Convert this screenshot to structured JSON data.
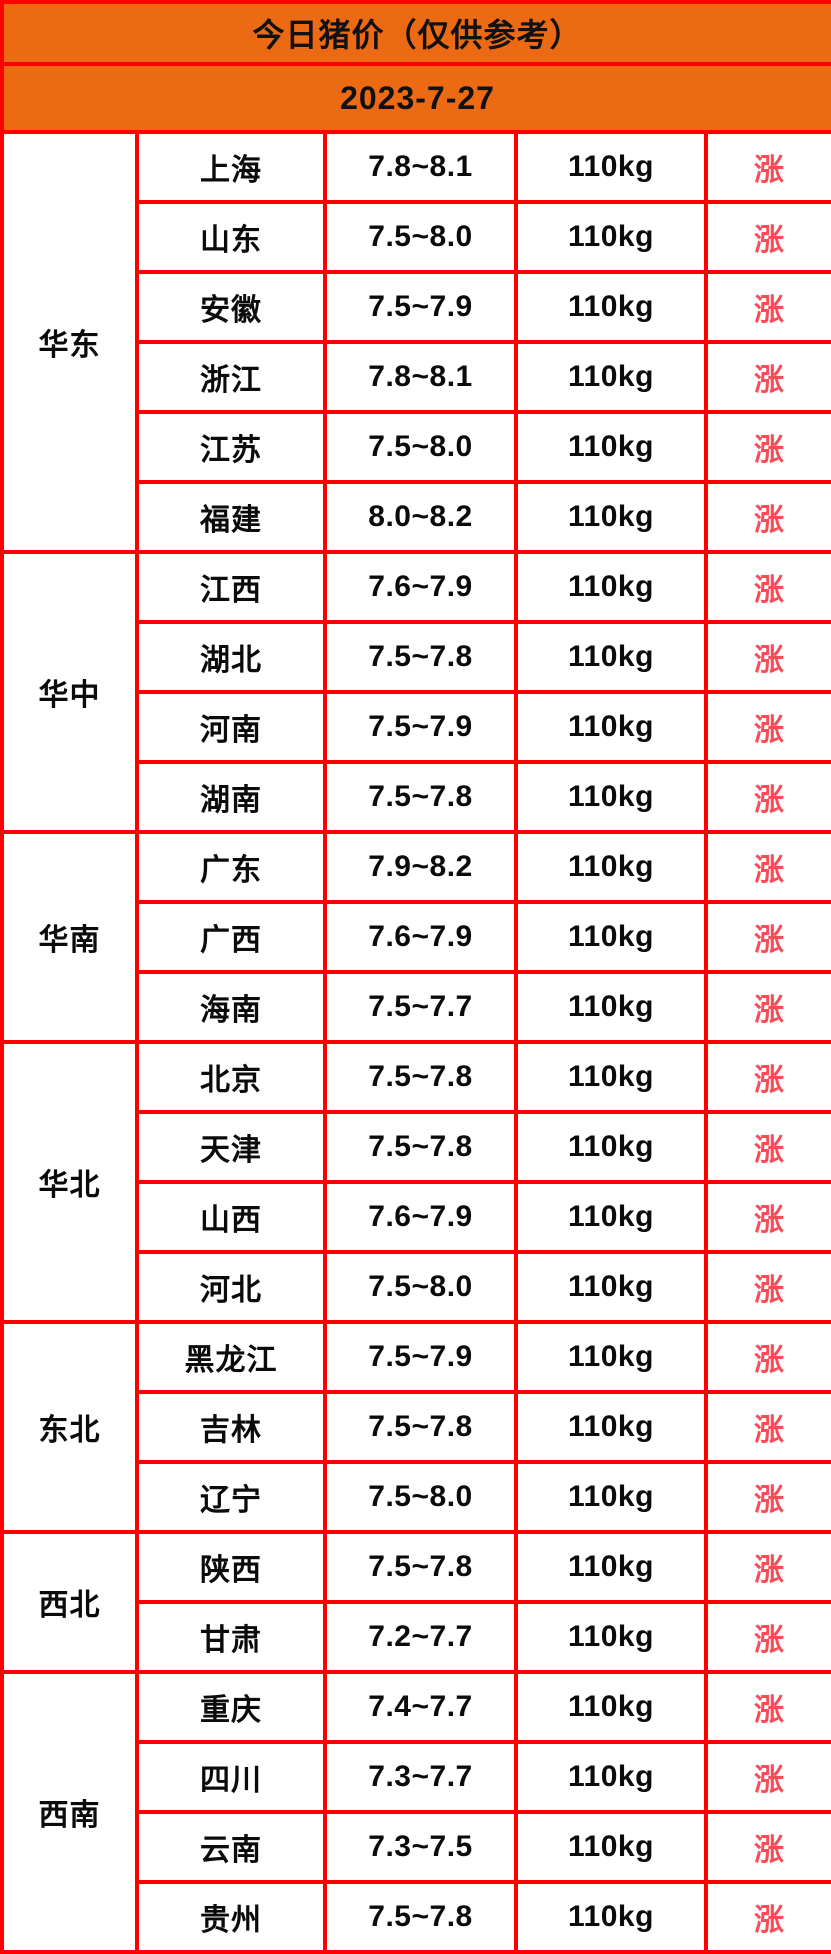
{
  "header": {
    "title": "今日猪价（仅供参考）",
    "date": "2023-7-27"
  },
  "colors": {
    "header_orange": "#ED6A14",
    "border_red": "#FF0000",
    "trend_red": "#FA4B57",
    "text_black": "#0b0b0b",
    "cell_white": "#ffffff"
  },
  "chart_data": {
    "type": "table",
    "title": "今日猪价（仅供参考）",
    "subtitle": "2023-7-27",
    "columns": [
      "region",
      "province",
      "price_range",
      "weight",
      "trend"
    ],
    "groups": [
      {
        "region": "华东",
        "rows": [
          {
            "province": "上海",
            "price": "7.8~8.1",
            "weight": "110kg",
            "trend": "涨"
          },
          {
            "province": "山东",
            "price": "7.5~8.0",
            "weight": "110kg",
            "trend": "涨"
          },
          {
            "province": "安徽",
            "price": "7.5~7.9",
            "weight": "110kg",
            "trend": "涨"
          },
          {
            "province": "浙江",
            "price": "7.8~8.1",
            "weight": "110kg",
            "trend": "涨"
          },
          {
            "province": "江苏",
            "price": "7.5~8.0",
            "weight": "110kg",
            "trend": "涨"
          },
          {
            "province": "福建",
            "price": "8.0~8.2",
            "weight": "110kg",
            "trend": "涨"
          }
        ]
      },
      {
        "region": "华中",
        "rows": [
          {
            "province": "江西",
            "price": "7.6~7.9",
            "weight": "110kg",
            "trend": "涨"
          },
          {
            "province": "湖北",
            "price": "7.5~7.8",
            "weight": "110kg",
            "trend": "涨"
          },
          {
            "province": "河南",
            "price": "7.5~7.9",
            "weight": "110kg",
            "trend": "涨"
          },
          {
            "province": "湖南",
            "price": "7.5~7.8",
            "weight": "110kg",
            "trend": "涨"
          }
        ]
      },
      {
        "region": "华南",
        "rows": [
          {
            "province": "广东",
            "price": "7.9~8.2",
            "weight": "110kg",
            "trend": "涨"
          },
          {
            "province": "广西",
            "price": "7.6~7.9",
            "weight": "110kg",
            "trend": "涨"
          },
          {
            "province": "海南",
            "price": "7.5~7.7",
            "weight": "110kg",
            "trend": "涨"
          }
        ]
      },
      {
        "region": "华北",
        "rows": [
          {
            "province": "北京",
            "price": "7.5~7.8",
            "weight": "110kg",
            "trend": "涨"
          },
          {
            "province": "天津",
            "price": "7.5~7.8",
            "weight": "110kg",
            "trend": "涨"
          },
          {
            "province": "山西",
            "price": "7.6~7.9",
            "weight": "110kg",
            "trend": "涨"
          },
          {
            "province": "河北",
            "price": "7.5~8.0",
            "weight": "110kg",
            "trend": "涨"
          }
        ]
      },
      {
        "region": "东北",
        "rows": [
          {
            "province": "黑龙江",
            "price": "7.5~7.9",
            "weight": "110kg",
            "trend": "涨"
          },
          {
            "province": "吉林",
            "price": "7.5~7.8",
            "weight": "110kg",
            "trend": "涨"
          },
          {
            "province": "辽宁",
            "price": "7.5~8.0",
            "weight": "110kg",
            "trend": "涨"
          }
        ]
      },
      {
        "region": "西北",
        "rows": [
          {
            "province": "陕西",
            "price": "7.5~7.8",
            "weight": "110kg",
            "trend": "涨"
          },
          {
            "province": "甘肃",
            "price": "7.2~7.7",
            "weight": "110kg",
            "trend": "涨"
          }
        ]
      },
      {
        "region": "西南",
        "rows": [
          {
            "province": "重庆",
            "price": "7.4~7.7",
            "weight": "110kg",
            "trend": "涨"
          },
          {
            "province": "四川",
            "price": "7.3~7.7",
            "weight": "110kg",
            "trend": "涨"
          },
          {
            "province": "云南",
            "price": "7.3~7.5",
            "weight": "110kg",
            "trend": "涨"
          },
          {
            "province": "贵州",
            "price": "7.5~7.8",
            "weight": "110kg",
            "trend": "涨"
          }
        ]
      }
    ]
  }
}
